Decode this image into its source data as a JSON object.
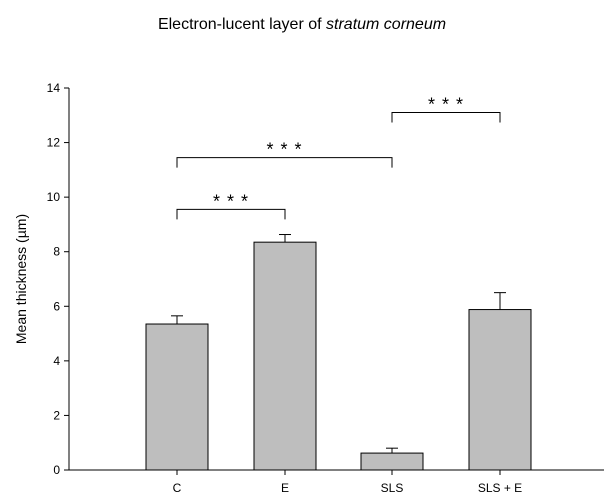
{
  "chart_data": {
    "type": "bar",
    "title": {
      "prefix": "Electron-lucent layer of ",
      "emphasis": "stratum corneum"
    },
    "xlabel": "",
    "ylabel": "Mean thickness (µm)",
    "ylim": [
      0,
      14
    ],
    "yticks": [
      0,
      2,
      4,
      6,
      8,
      10,
      12,
      14
    ],
    "categories": [
      "C",
      "E",
      "SLS",
      "SLS + E"
    ],
    "values": [
      5.35,
      8.35,
      0.62,
      5.88
    ],
    "errors": [
      0.3,
      0.28,
      0.18,
      0.62
    ],
    "grid": false,
    "legend": "none",
    "bar_color": "#bebebe",
    "significance": [
      {
        "from": "C",
        "to": "E",
        "label": "* * *",
        "y": 9.55
      },
      {
        "from": "C",
        "to": "SLS",
        "label": "* * *",
        "y": 11.45
      },
      {
        "from": "SLS",
        "to": "SLS + E",
        "label": "* * *",
        "y": 13.1
      }
    ]
  }
}
